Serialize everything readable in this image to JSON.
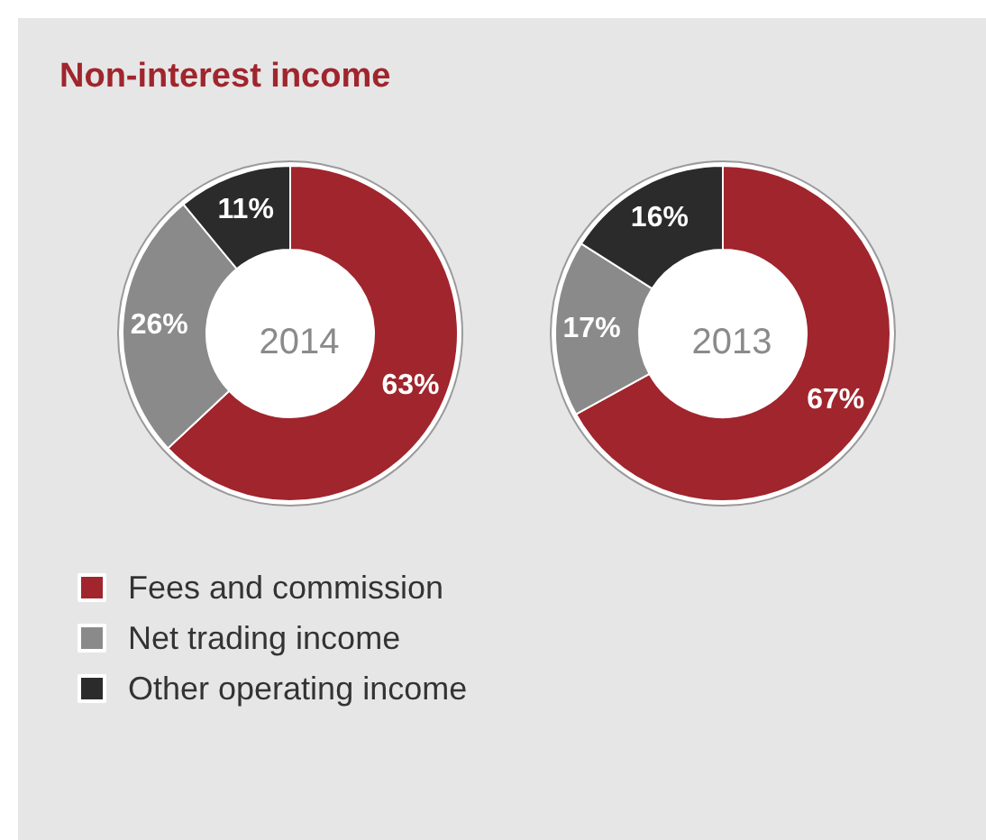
{
  "chart_data": [
    {
      "type": "donut",
      "title": "2014",
      "annotations": [
        "Non-interest income"
      ],
      "categories": [
        "Fees and commission",
        "Net trading income",
        "Other operating income"
      ],
      "values": [
        63,
        26,
        11
      ],
      "value_labels": [
        "63%",
        "26%",
        "11%"
      ],
      "colors": [
        "#a0252d",
        "#8a8a8a",
        "#2b2b2b"
      ],
      "legend": "bottom left"
    },
    {
      "type": "donut",
      "title": "2013",
      "categories": [
        null,
        null,
        null
      ],
      "values": [
        67,
        17,
        16
      ],
      "value_labels": [
        "67%",
        "17%",
        "16%"
      ],
      "colors": [
        "#a0252d",
        "#8a8a8a",
        "#2b2b2b"
      ],
      "legend": false
    }
  ]
}
